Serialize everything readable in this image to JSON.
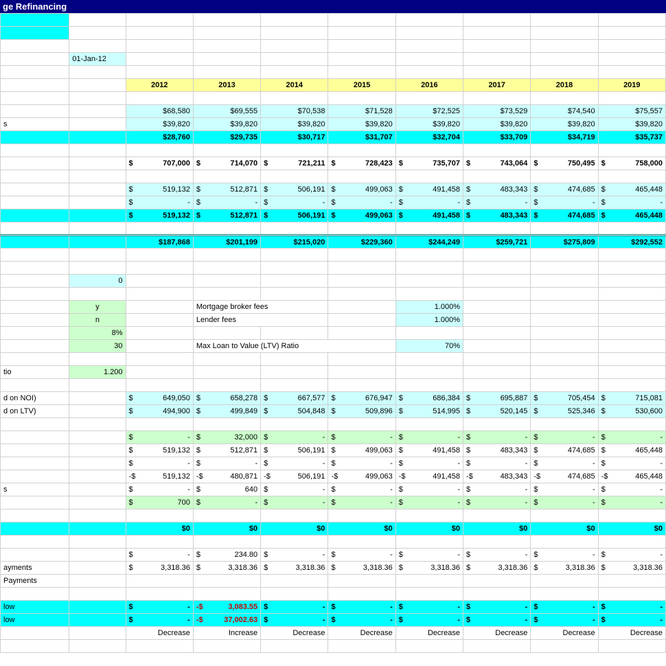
{
  "title": "ge Refinancing",
  "date_cell": "01-Jan-12",
  "years": [
    "2012",
    "2013",
    "2014",
    "2015",
    "2016",
    "2017",
    "2018",
    "2019"
  ],
  "row_a": [
    "$68,580",
    "$69,555",
    "$70,538",
    "$71,528",
    "$72,525",
    "$73,529",
    "$74,540",
    "$75,557"
  ],
  "row_b": [
    "$39,820",
    "$39,820",
    "$39,820",
    "$39,820",
    "$39,820",
    "$39,820",
    "$39,820",
    "$39,820"
  ],
  "row_c": [
    "$28,760",
    "$29,735",
    "$30,717",
    "$31,707",
    "$32,704",
    "$33,709",
    "$34,719",
    "$35,737"
  ],
  "row_d": [
    "707,000",
    "714,070",
    "721,211",
    "728,423",
    "735,707",
    "743,064",
    "750,495",
    "758,000"
  ],
  "row_e": [
    "519,132",
    "512,871",
    "506,191",
    "499,063",
    "491,458",
    "483,343",
    "474,685",
    "465,448"
  ],
  "row_f": [
    "-",
    "-",
    "-",
    "-",
    "-",
    "-",
    "-",
    "-"
  ],
  "row_g": [
    "519,132",
    "512,871",
    "506,191",
    "499,063",
    "491,458",
    "483,343",
    "474,685",
    "465,448"
  ],
  "row_h": [
    "$187,868",
    "$201,199",
    "$215,020",
    "$229,360",
    "$244,249",
    "$259,721",
    "$275,809",
    "$292,552"
  ],
  "input0": "0",
  "input_y": "y",
  "input_n": "n",
  "input_8": "8%",
  "input_30": "30",
  "input_1200": "1.200",
  "label_tio": "tio",
  "label_noi": "d on NOI)",
  "label_ltv": "d on LTV)",
  "label_s": "s",
  "label_payments": "ayments",
  "label_payments2": "Payments",
  "label_low": "low",
  "label_low2": "low",
  "fee1_label": "Mortgage broker fees",
  "fee1_val": "1.000%",
  "fee2_label": "Lender fees",
  "fee2_val": "1.000%",
  "ltv_label": "Max Loan to Value (LTV) Ratio",
  "ltv_val": "70%",
  "row_noi": [
    "649,050",
    "658,278",
    "667,577",
    "676,947",
    "686,384",
    "695,887",
    "705,454",
    "715,081"
  ],
  "row_ltv": [
    "494,900",
    "499,849",
    "504,848",
    "509,896",
    "514,995",
    "520,145",
    "525,346",
    "530,600"
  ],
  "row_p1": [
    "-",
    "32,000",
    "-",
    "-",
    "-",
    "-",
    "-",
    "-"
  ],
  "row_p2": [
    "519,132",
    "512,871",
    "506,191",
    "499,063",
    "491,458",
    "483,343",
    "474,685",
    "465,448"
  ],
  "row_p3": [
    "-",
    "-",
    "-",
    "-",
    "-",
    "-",
    "-",
    "-"
  ],
  "row_p4": [
    "519,132",
    "480,871",
    "506,191",
    "499,063",
    "491,458",
    "483,343",
    "474,685",
    "465,448"
  ],
  "row_p5": [
    "-",
    "640",
    "-",
    "-",
    "-",
    "-",
    "-",
    "-"
  ],
  "row_p6": [
    "700",
    "-",
    "-",
    "-",
    "-",
    "-",
    "-",
    "-"
  ],
  "zeros": [
    "$0",
    "$0",
    "$0",
    "$0",
    "$0",
    "$0",
    "$0",
    "$0"
  ],
  "row_q1": [
    "-",
    "234.80",
    "-",
    "-",
    "-",
    "-",
    "-",
    "-"
  ],
  "row_q2": [
    "3,318.36",
    "3,318.36",
    "3,318.36",
    "3,318.36",
    "3,318.36",
    "3,318.36",
    "3,318.36",
    "3,318.36"
  ],
  "row_r1": [
    "-",
    "3,083.55",
    "-",
    "-",
    "-",
    "-",
    "-",
    "-"
  ],
  "row_r2": [
    "-",
    "37,002.63",
    "-",
    "-",
    "-",
    "-",
    "-",
    "-"
  ],
  "decrease": "Decrease",
  "increase": "Increase"
}
